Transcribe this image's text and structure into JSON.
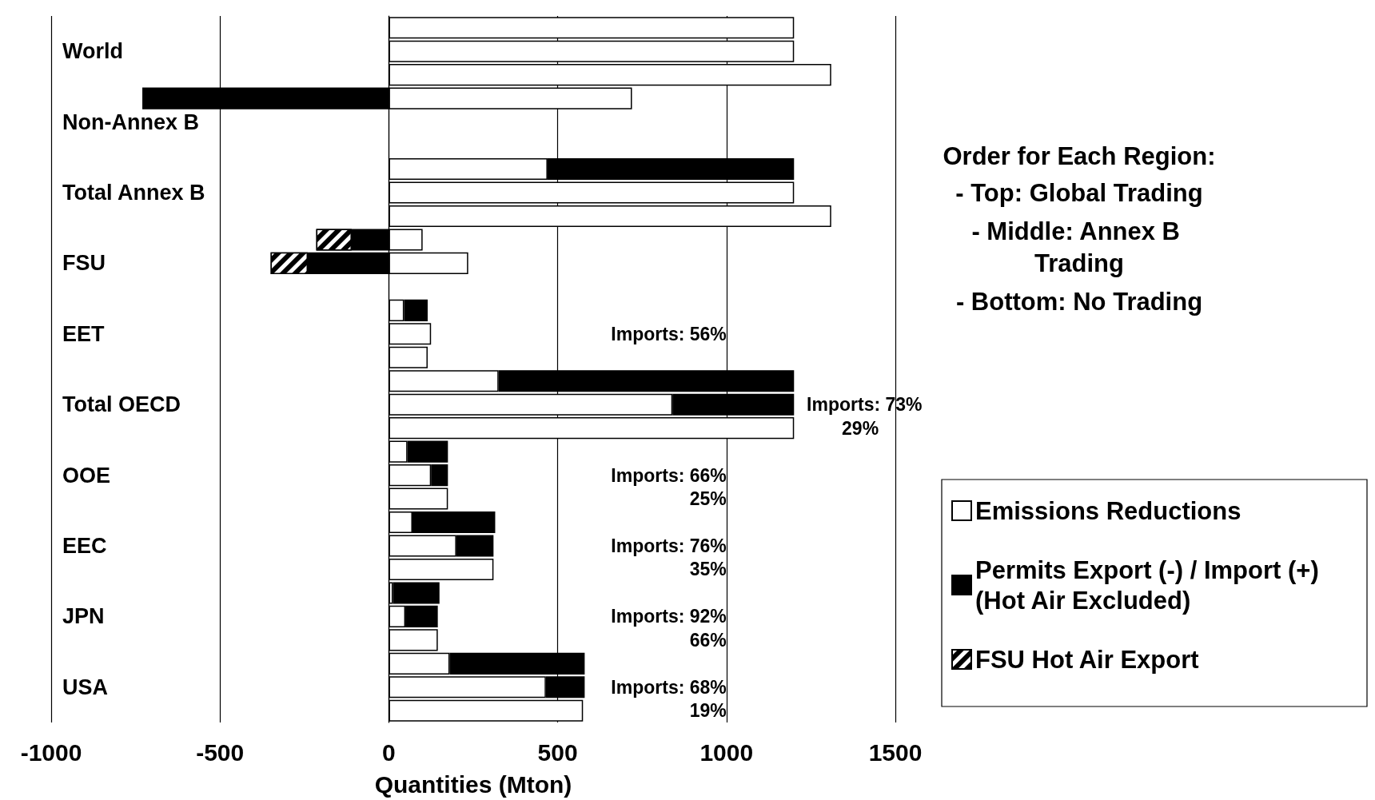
{
  "chart_data": {
    "type": "bar",
    "orientation": "horizontal",
    "stacked": true,
    "xlabel": "Quantities (Mton)",
    "categories": [
      null,
      "World",
      null,
      null,
      "Non-Annex B",
      null,
      null,
      "Total Annex B",
      null,
      null,
      "FSU",
      null,
      null,
      "EET",
      null,
      null,
      "Total OECD",
      null,
      null,
      "OOE",
      null,
      null,
      "EEC",
      null,
      null,
      "JPN",
      null,
      null,
      "USA",
      null
    ],
    "series": [
      {
        "name": "Emissions Reductions",
        "color": "#ffffff",
        "values": [
          1200,
          1200,
          1310,
          720,
          null,
          null,
          470,
          1200,
          1310,
          100,
          235,
          null,
          45,
          125,
          115,
          325,
          840,
          1200,
          55,
          125,
          175,
          70,
          200,
          310,
          12,
          49,
          145,
          180,
          465,
          575
        ]
      },
      {
        "name": "Permits Export (-) / Import (+) (Hot Air Excluded)",
        "color": "#000000",
        "values": [
          null,
          null,
          null,
          -730,
          null,
          null,
          730,
          null,
          null,
          -110,
          -240,
          null,
          70,
          null,
          null,
          875,
          360,
          null,
          120,
          50,
          null,
          245,
          110,
          null,
          138,
          96,
          null,
          400,
          115,
          null
        ]
      },
      {
        "name": "FSU Hot Air Export",
        "color": "#000000",
        "values": [
          null,
          null,
          null,
          null,
          null,
          null,
          null,
          null,
          null,
          -105,
          -110,
          null,
          null,
          null,
          null,
          null,
          null,
          null,
          null,
          null,
          null,
          null,
          null,
          null,
          null,
          null,
          null,
          null,
          null,
          null
        ]
      }
    ],
    "xlim": [
      -1000,
      1500
    ],
    "xticks": [
      -1000,
      -500,
      0,
      500,
      1000,
      1500
    ],
    "grid": "x",
    "legend": "right",
    "annotations": [
      "Order for Each Region:",
      "- Top: Global Trading",
      "- Middle: Annex B Trading",
      "- Bottom: No Trading",
      "Imports: 56%",
      "Imports: 73%",
      "29%",
      "Imports: 66%",
      "25%",
      "Imports: 76%",
      "35%",
      "Imports: 92%",
      "66%",
      "Imports: 68%",
      "19%"
    ]
  }
}
